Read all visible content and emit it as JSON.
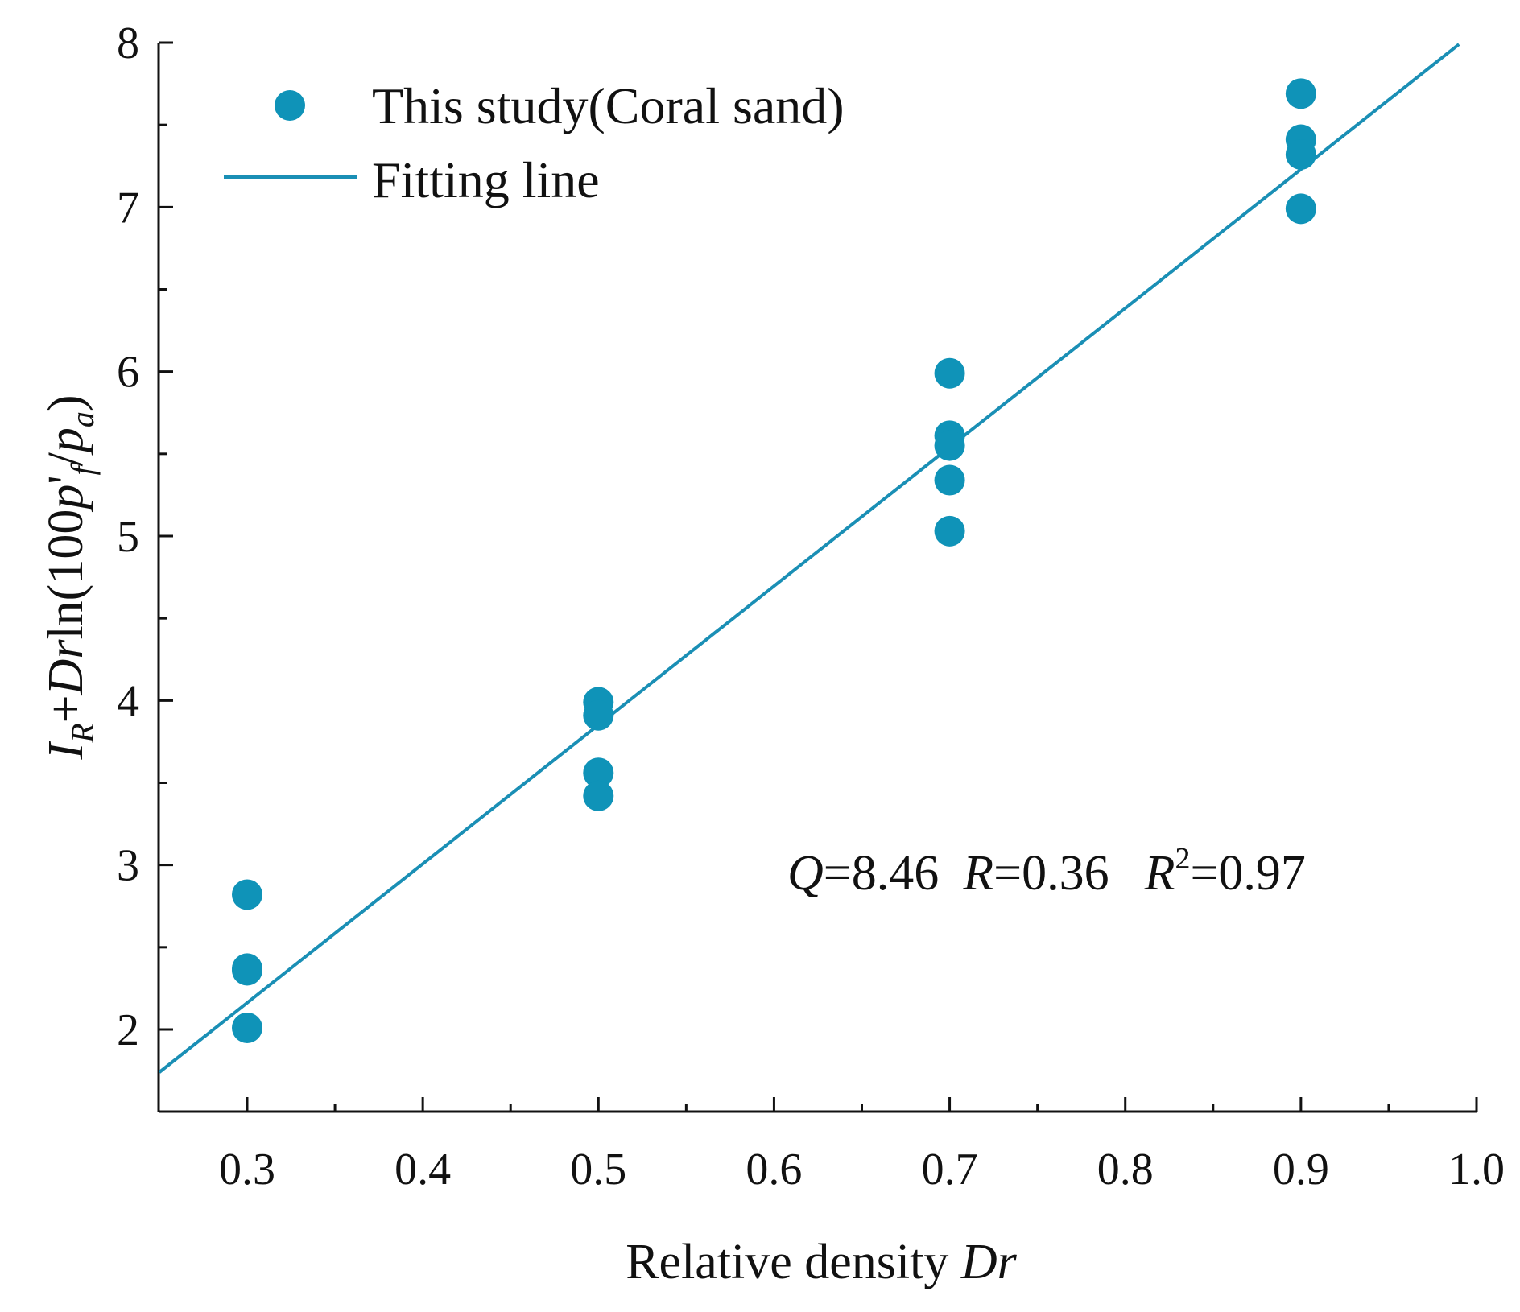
{
  "chart_data": {
    "type": "scatter",
    "title": "",
    "xlabel": "Relative density Dr",
    "xlabel_parts": {
      "plain": "Relative density ",
      "italic": "Dr"
    },
    "ylabel": "I_R+Drln(100p'_f/p_a)",
    "ylabel_parts": {
      "I": "I",
      "I_sub": "R",
      "plus": "+",
      "Dr": "Dr",
      "ln": "ln(100",
      "p": "p",
      "prime": "'",
      "p_sub": "f",
      "slash": "/",
      "pa": "p",
      "pa_sub": "a",
      "close": ")"
    },
    "xlim": [
      0.25,
      1.0
    ],
    "ylim": [
      1.5,
      8
    ],
    "xticks": [
      "0.3",
      "0.4",
      "0.5",
      "0.6",
      "0.7",
      "0.8",
      "0.9",
      "1.0"
    ],
    "xtick_values": [
      0.3,
      0.4,
      0.5,
      0.6,
      0.7,
      0.8,
      0.9,
      1.0
    ],
    "xminor_values": [
      0.35,
      0.45,
      0.55,
      0.65,
      0.75,
      0.85,
      0.95
    ],
    "yticks": [
      "2",
      "3",
      "4",
      "5",
      "6",
      "7",
      "8"
    ],
    "ytick_values": [
      2,
      3,
      4,
      5,
      6,
      7,
      8
    ],
    "yminor_values": [
      2.5,
      3.5,
      4.5,
      5.5,
      6.5,
      7.5
    ],
    "grid": false,
    "legend_position": "top-left",
    "series": [
      {
        "name": "This study(Coral sand)",
        "kind": "scatter",
        "color": "#0f93b8",
        "x": [
          0.3,
          0.3,
          0.3,
          0.3,
          0.5,
          0.5,
          0.5,
          0.5,
          0.7,
          0.7,
          0.7,
          0.7,
          0.7,
          0.9,
          0.9,
          0.9,
          0.9
        ],
        "y": [
          2.82,
          2.37,
          2.36,
          2.01,
          3.99,
          3.91,
          3.56,
          3.42,
          5.99,
          5.61,
          5.55,
          5.34,
          5.03,
          7.69,
          7.41,
          7.32,
          6.99
        ]
      },
      {
        "name": "Fitting line",
        "kind": "line",
        "color": "#1a8fb5",
        "x": [
          0.25,
          0.99
        ],
        "y": [
          1.74,
          7.99
        ]
      }
    ],
    "annotation": {
      "Q": "Q",
      "Q_val": "=8.46",
      "R": "R",
      "R_val": "=0.36",
      "R2": "R",
      "R2_sup": "2",
      "R2_val": "=0.97"
    }
  }
}
